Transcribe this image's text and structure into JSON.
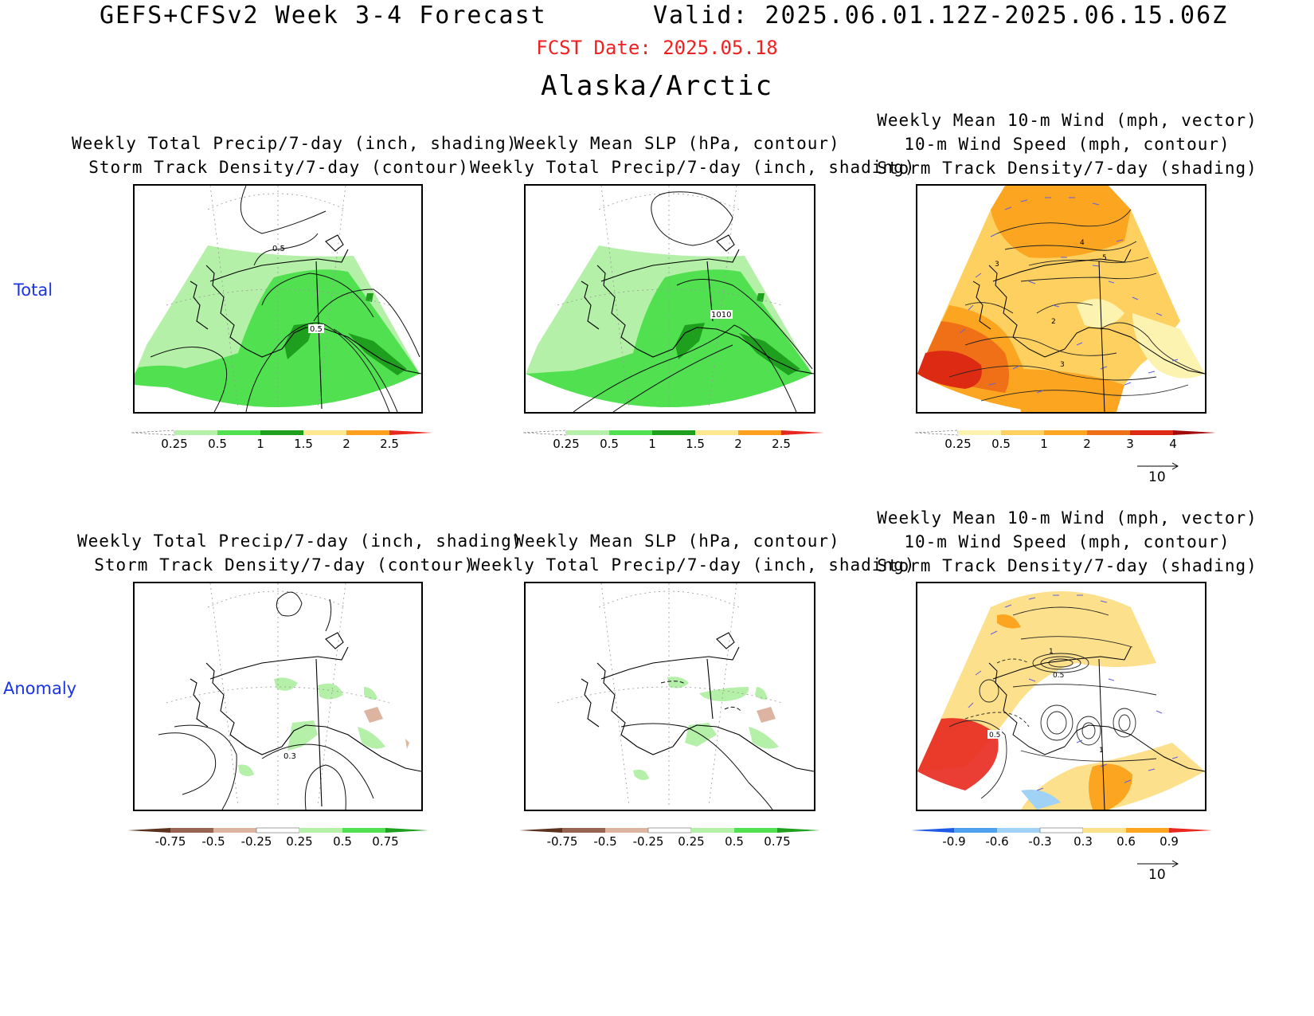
{
  "header": {
    "title": "GEFS+CFSv2 Week 3-4 Forecast",
    "valid": "Valid: 2025.06.01.12Z-2025.06.15.06Z",
    "fcst_date": "FCST Date: 2025.05.18",
    "region": "Alaska/Arctic"
  },
  "rows": {
    "total": "Total",
    "anomaly": "Anomaly"
  },
  "columns": {
    "c1": {
      "line1": "Weekly Total Precip/7-day (inch, shading)",
      "line2": "Storm Track Density/7-day (contour)"
    },
    "c2": {
      "line1": "Weekly Mean SLP (hPa, contour)",
      "line2": "Weekly Total Precip/7-day (inch, shading)"
    },
    "c3": {
      "line1": "Weekly Mean 10-m Wind (mph, vector)",
      "line2": "10-m Wind Speed (mph, contour)",
      "line3": "Storm Track Density/7-day (shading)"
    }
  },
  "contour_labels": {
    "p11a": "0.5",
    "p11b": "0.5",
    "p12a": "1010",
    "p13a": "4",
    "p13b": "3",
    "p13c": "2",
    "p13d": "3",
    "p13e": "5",
    "p21a": "0.3",
    "p23a": "1",
    "p23b": "0.5",
    "p23c": "0.5",
    "p23d": "1"
  },
  "colorbars": {
    "precip_total": {
      "colors": [
        "#ffffff",
        "#b4f0a8",
        "#50e050",
        "#1ea01e",
        "#fde890",
        "#fda01e",
        "#e8281e"
      ],
      "labels": [
        "0.25",
        "0.5",
        "1",
        "1.5",
        "2",
        "2.5"
      ]
    },
    "storm_total": {
      "colors": [
        "#ffffff",
        "#fdf3b0",
        "#fdd060",
        "#fba520",
        "#f07018",
        "#dd2a12",
        "#a00a0a"
      ],
      "labels": [
        "0.25",
        "0.5",
        "1",
        "2",
        "3",
        "4"
      ]
    },
    "precip_anom": {
      "colors": [
        "#5a321e",
        "#966450",
        "#dcb4a0",
        "#ffffff",
        "#b4f0a8",
        "#50e050",
        "#1ea01e"
      ],
      "labels": [
        "-0.75",
        "-0.5",
        "-0.25",
        "0.25",
        "0.5",
        "0.75"
      ]
    },
    "storm_anom": {
      "colors": [
        "#1e5ae6",
        "#50a0f0",
        "#a0d2f5",
        "#ffffff",
        "#fde08c",
        "#fba520",
        "#e8281e"
      ],
      "labels": [
        "-0.9",
        "-0.6",
        "-0.3",
        "0.3",
        "0.6",
        "0.9"
      ]
    }
  },
  "vector_ref": {
    "top": "10",
    "bottom": "10"
  },
  "colors": {
    "accent_blue": "#1a34e6",
    "fcst_red": "#ee2222",
    "vector": "#6060e0"
  }
}
